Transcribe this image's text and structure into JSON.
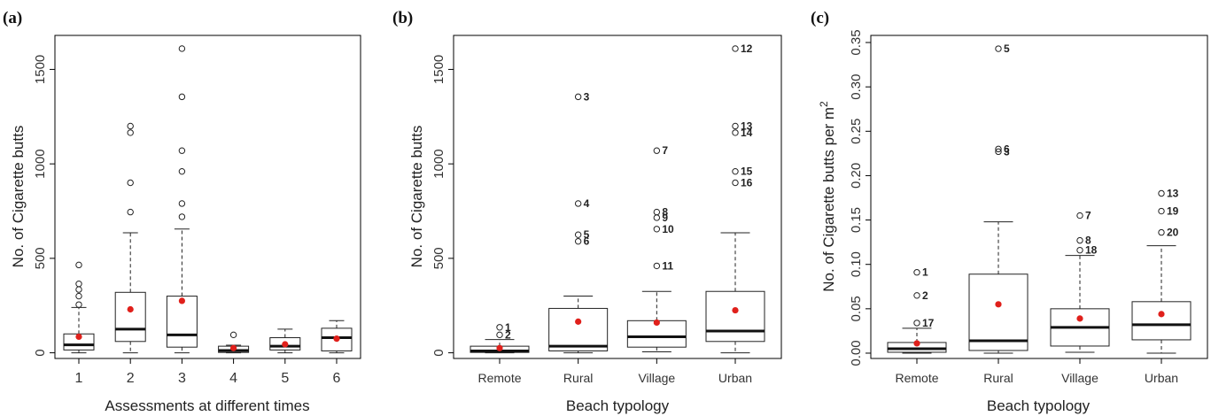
{
  "chart_data": [
    {
      "type": "box",
      "panel_label": "(a)",
      "xlabel": "Assessments at different times",
      "ylabel": "No. of Cigarette butts",
      "ylim": [
        -30,
        1680
      ],
      "yticks": [
        0,
        500,
        1000,
        1500
      ],
      "categories": [
        "1",
        "2",
        "3",
        "4",
        "5",
        "6"
      ],
      "boxes": [
        {
          "min": 0,
          "q1": 15,
          "median": 42,
          "q3": 100,
          "max": 240,
          "mean": 85,
          "outliers": [
            {
              "v": 255
            },
            {
              "v": 300
            },
            {
              "v": 335
            },
            {
              "v": 365
            },
            {
              "v": 465
            }
          ]
        },
        {
          "min": 0,
          "q1": 60,
          "median": 125,
          "q3": 320,
          "max": 635,
          "mean": 230,
          "outliers": [
            {
              "v": 745
            },
            {
              "v": 900
            },
            {
              "v": 1165
            },
            {
              "v": 1200
            }
          ]
        },
        {
          "min": 0,
          "q1": 30,
          "median": 95,
          "q3": 300,
          "max": 655,
          "mean": 275,
          "outliers": [
            {
              "v": 720
            },
            {
              "v": 790
            },
            {
              "v": 960
            },
            {
              "v": 1070
            },
            {
              "v": 1355
            },
            {
              "v": 1610
            }
          ]
        },
        {
          "min": 0,
          "q1": 2,
          "median": 12,
          "q3": 35,
          "max": 40,
          "mean": 25,
          "outliers": [
            {
              "v": 95
            }
          ]
        },
        {
          "min": 0,
          "q1": 15,
          "median": 35,
          "q3": 80,
          "max": 125,
          "mean": 45,
          "outliers": []
        },
        {
          "min": 0,
          "q1": 10,
          "median": 80,
          "q3": 130,
          "max": 170,
          "mean": 75,
          "outliers": []
        }
      ]
    },
    {
      "type": "box",
      "panel_label": "(b)",
      "xlabel": "Beach typology",
      "ylabel": "No. of Cigarette butts",
      "ylim": [
        -30,
        1680
      ],
      "yticks": [
        0,
        500,
        1000,
        1500
      ],
      "categories": [
        "Remote",
        "Rural",
        "Village",
        "Urban"
      ],
      "boxes": [
        {
          "min": 0,
          "q1": 2,
          "median": 10,
          "q3": 35,
          "max": 70,
          "mean": 25,
          "outliers": [
            {
              "v": 95,
              "label": "2"
            },
            {
              "v": 135,
              "label": "1"
            }
          ]
        },
        {
          "min": 0,
          "q1": 10,
          "median": 35,
          "q3": 235,
          "max": 300,
          "mean": 165,
          "outliers": [
            {
              "v": 590,
              "label": "6"
            },
            {
              "v": 625,
              "label": "5"
            },
            {
              "v": 790,
              "label": "4"
            },
            {
              "v": 1355,
              "label": "3"
            }
          ]
        },
        {
          "min": 5,
          "q1": 30,
          "median": 85,
          "q3": 170,
          "max": 325,
          "mean": 160,
          "outliers": [
            {
              "v": 460,
              "label": "11"
            },
            {
              "v": 655,
              "label": "10"
            },
            {
              "v": 715,
              "label": "9"
            },
            {
              "v": 745,
              "label": "8"
            },
            {
              "v": 1070,
              "label": "7"
            }
          ]
        },
        {
          "min": 0,
          "q1": 60,
          "median": 115,
          "q3": 325,
          "max": 635,
          "mean": 225,
          "outliers": [
            {
              "v": 900,
              "label": "16"
            },
            {
              "v": 960,
              "label": "15"
            },
            {
              "v": 1165,
              "label": "14"
            },
            {
              "v": 1200,
              "label": "13"
            },
            {
              "v": 1610,
              "label": "12"
            }
          ]
        }
      ]
    },
    {
      "type": "box",
      "panel_label": "(c)",
      "xlabel": "Beach typology",
      "ylabel": "No. of Cigarette butts per m",
      "ylabel_superscript": "2",
      "ylim": [
        -0.006,
        0.358
      ],
      "yticks": [
        0.0,
        0.05,
        0.1,
        0.15,
        0.2,
        0.25,
        0.3,
        0.35
      ],
      "ytick_labels": [
        "0.00",
        "0.05",
        "0.10",
        "0.15",
        "0.20",
        "0.25",
        "0.30",
        "0.35"
      ],
      "categories": [
        "Remote",
        "Rural",
        "Village",
        "Urban"
      ],
      "boxes": [
        {
          "min": 0,
          "q1": 0.001,
          "median": 0.005,
          "q3": 0.012,
          "max": 0.028,
          "mean": 0.011,
          "outliers": [
            {
              "v": 0.034,
              "label": "17"
            },
            {
              "v": 0.065,
              "label": "2"
            },
            {
              "v": 0.091,
              "label": "1"
            }
          ]
        },
        {
          "min": 0,
          "q1": 0.003,
          "median": 0.014,
          "q3": 0.089,
          "max": 0.148,
          "mean": 0.055,
          "outliers": [
            {
              "v": 0.227,
              "label": "3"
            },
            {
              "v": 0.23,
              "label": "6"
            },
            {
              "v": 0.343,
              "label": "5"
            }
          ]
        },
        {
          "min": 0.001,
          "q1": 0.008,
          "median": 0.029,
          "q3": 0.05,
          "max": 0.11,
          "mean": 0.039,
          "outliers": [
            {
              "v": 0.116,
              "label": "18"
            },
            {
              "v": 0.127,
              "label": "8"
            },
            {
              "v": 0.155,
              "label": "7"
            }
          ]
        },
        {
          "min": 0,
          "q1": 0.015,
          "median": 0.032,
          "q3": 0.058,
          "max": 0.121,
          "mean": 0.044,
          "outliers": [
            {
              "v": 0.136,
              "label": "20"
            },
            {
              "v": 0.16,
              "label": "19"
            },
            {
              "v": 0.18,
              "label": "13"
            }
          ]
        }
      ]
    }
  ],
  "colors": {
    "mean_point": "#e0201b",
    "box_stroke": "#222222",
    "outlier_stroke": "#222222"
  }
}
